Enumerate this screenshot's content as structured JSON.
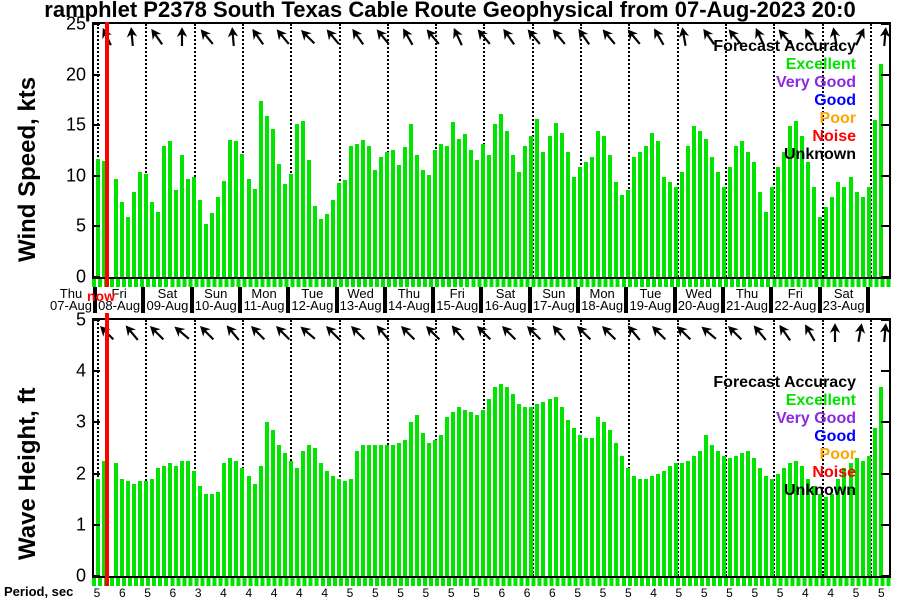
{
  "title": "ramphlet P2378 South Texas Cable Route Geophysical from 07-Aug-2023 20:0",
  "now_label": "now",
  "colors": {
    "bar": "#00e400",
    "now_line": "#ff0000",
    "axis": "#000000"
  },
  "legend": {
    "title": "Forecast Accuracy",
    "title_color": "#000000",
    "entries": [
      {
        "label": "Excellent",
        "color": "#00e400"
      },
      {
        "label": "Very Good",
        "color": "#8a2be2"
      },
      {
        "label": "Good",
        "color": "#0000ff"
      },
      {
        "label": "Poor",
        "color": "#ffa500"
      },
      {
        "label": "Noise",
        "color": "#ff0000"
      },
      {
        "label": "Unknown",
        "color": "#000000"
      }
    ]
  },
  "x_axis": {
    "days": [
      {
        "name": "Thu",
        "date": "07-Aug"
      },
      {
        "name": "Fri",
        "date": "08-Aug"
      },
      {
        "name": "Sat",
        "date": "09-Aug"
      },
      {
        "name": "Sun",
        "date": "10-Aug"
      },
      {
        "name": "Mon",
        "date": "11-Aug"
      },
      {
        "name": "Tue",
        "date": "12-Aug"
      },
      {
        "name": "Wed",
        "date": "13-Aug"
      },
      {
        "name": "Thu",
        "date": "14-Aug"
      },
      {
        "name": "Fri",
        "date": "15-Aug"
      },
      {
        "name": "Sat",
        "date": "16-Aug"
      },
      {
        "name": "Sun",
        "date": "17-Aug"
      },
      {
        "name": "Mon",
        "date": "18-Aug"
      },
      {
        "name": "Tue",
        "date": "19-Aug"
      },
      {
        "name": "Wed",
        "date": "20-Aug"
      },
      {
        "name": "Thu",
        "date": "21-Aug"
      },
      {
        "name": "Fri",
        "date": "22-Aug"
      },
      {
        "name": "Sat",
        "date": "23-Aug"
      }
    ]
  },
  "period_row": {
    "label": "Period, sec",
    "values": [
      5,
      6,
      5,
      6,
      3,
      4,
      4,
      4,
      4,
      4,
      5,
      5,
      5,
      5,
      5,
      5,
      6,
      6,
      6,
      5,
      5,
      5,
      4,
      5,
      5,
      5,
      5,
      5,
      4,
      4,
      5,
      5
    ]
  },
  "chart_data": [
    {
      "type": "bar",
      "title": "",
      "ylabel": "Wind Speed, kts",
      "ylim": [
        0,
        25
      ],
      "yticks": [
        0,
        5,
        10,
        15,
        20,
        25
      ],
      "grid": "vertical-dotted-daily",
      "legend_position": "upper right",
      "bar_color_meaning": "Forecast Accuracy: Excellent",
      "categories_days": [
        "Thu 07-Aug",
        "Fri 08-Aug",
        "Sat 09-Aug",
        "Sun 10-Aug",
        "Mon 11-Aug",
        "Tue 12-Aug",
        "Wed 13-Aug",
        "Thu 14-Aug",
        "Fri 15-Aug",
        "Sat 16-Aug",
        "Sun 17-Aug",
        "Mon 18-Aug",
        "Tue 19-Aug",
        "Wed 20-Aug",
        "Thu 21-Aug",
        "Fri 22-Aug",
        "Sat 23-Aug"
      ],
      "values": [
        11.7,
        11.5,
        9.7,
        7.4,
        5.9,
        8.4,
        10.4,
        10.2,
        7.4,
        6.4,
        12.9,
        13.4,
        8.6,
        12.1,
        9.7,
        9.9,
        7.6,
        5.2,
        6.3,
        7.9,
        9.5,
        13.5,
        13.4,
        12.2,
        9.7,
        8.7,
        17.4,
        15.9,
        14.6,
        11.2,
        9.2,
        10.2,
        15.1,
        15.4,
        11.6,
        7.0,
        5.7,
        6.2,
        7.6,
        9.3,
        9.6,
        12.9,
        13.1,
        13.5,
        12.9,
        10.6,
        11.9,
        12.4,
        12.6,
        11.1,
        12.8,
        15.1,
        12.1,
        10.6,
        10.1,
        12.6,
        13.1,
        12.9,
        15.3,
        13.6,
        14.1,
        12.6,
        11.6,
        13.1,
        12.1,
        15.1,
        16.1,
        14.4,
        12.1,
        10.4,
        12.9,
        13.9,
        15.6,
        12.4,
        13.9,
        15.2,
        14.2,
        12.4,
        9.9,
        10.9,
        11.4,
        11.9,
        14.4,
        13.9,
        12.1,
        9.4,
        8.1,
        8.6,
        11.9,
        12.4,
        12.9,
        14.2,
        13.4,
        9.9,
        9.4,
        8.9,
        10.4,
        12.9,
        14.9,
        14.4,
        13.6,
        11.9,
        10.4,
        8.9,
        10.9,
        12.9,
        13.4,
        12.4,
        11.4,
        8.4,
        6.4,
        8.9,
        10.9,
        12.4,
        14.9,
        15.4,
        13.9,
        11.4,
        8.9,
        5.9,
        6.9,
        7.9,
        9.4,
        8.9,
        9.9,
        8.4,
        7.9,
        8.9,
        15.5,
        21.0
      ],
      "arrow_angles_deg_from_north": [
        -25,
        -5,
        -35,
        0,
        -40,
        -5,
        -35,
        -40,
        -45,
        -40,
        -35,
        -40,
        -30,
        -40,
        -25,
        -40,
        -35,
        -40,
        -40,
        -35,
        -40,
        -40,
        -30,
        -10,
        -35,
        -40,
        -25,
        -40,
        -30,
        -10,
        25,
        5
      ]
    },
    {
      "type": "bar",
      "title": "",
      "ylabel": "Wave Height, ft",
      "ylim": [
        0,
        5
      ],
      "yticks": [
        0,
        1,
        2,
        3,
        4,
        5
      ],
      "grid": "vertical-dotted-daily",
      "legend_position": "upper right",
      "bar_color_meaning": "Forecast Accuracy: Excellent",
      "categories_days": [
        "Thu 07-Aug",
        "Fri 08-Aug",
        "Sat 09-Aug",
        "Sun 10-Aug",
        "Mon 11-Aug",
        "Tue 12-Aug",
        "Wed 13-Aug",
        "Thu 14-Aug",
        "Fri 15-Aug",
        "Sat 16-Aug",
        "Sun 17-Aug",
        "Mon 18-Aug",
        "Tue 19-Aug",
        "Wed 20-Aug",
        "Thu 21-Aug",
        "Fri 22-Aug",
        "Sat 23-Aug"
      ],
      "values": [
        1.9,
        2.25,
        2.2,
        1.9,
        1.85,
        1.8,
        1.85,
        1.85,
        1.9,
        2.1,
        2.15,
        2.2,
        2.15,
        2.25,
        2.25,
        2.05,
        1.75,
        1.6,
        1.6,
        1.65,
        2.2,
        2.3,
        2.25,
        2.1,
        1.95,
        1.8,
        2.15,
        3.0,
        2.85,
        2.55,
        2.4,
        2.25,
        2.1,
        2.45,
        2.55,
        2.5,
        2.2,
        2.05,
        1.95,
        1.9,
        1.85,
        1.9,
        2.45,
        2.55,
        2.55,
        2.55,
        2.55,
        2.55,
        2.55,
        2.6,
        2.65,
        3.0,
        3.15,
        2.8,
        2.6,
        2.65,
        2.75,
        3.1,
        3.2,
        3.3,
        3.25,
        3.2,
        3.15,
        3.25,
        3.45,
        3.7,
        3.75,
        3.7,
        3.55,
        3.35,
        3.3,
        3.3,
        3.35,
        3.4,
        3.45,
        3.5,
        3.3,
        3.05,
        2.9,
        2.75,
        2.7,
        2.7,
        3.1,
        3.0,
        2.85,
        2.6,
        2.35,
        2.1,
        1.95,
        1.9,
        1.9,
        1.95,
        2.0,
        2.05,
        2.15,
        2.2,
        2.2,
        2.25,
        2.35,
        2.45,
        2.75,
        2.55,
        2.45,
        2.35,
        2.3,
        2.35,
        2.4,
        2.45,
        2.3,
        2.1,
        1.95,
        1.9,
        2.0,
        2.1,
        2.2,
        2.25,
        2.15,
        1.9,
        1.75,
        1.6,
        1.55,
        1.6,
        1.9,
        2.1,
        2.2,
        2.3,
        2.25,
        2.35,
        2.9,
        3.7
      ],
      "arrow_angles_deg_from_north": [
        -45,
        -40,
        -45,
        -50,
        -45,
        -40,
        -45,
        -45,
        -50,
        -45,
        -45,
        -40,
        -45,
        -45,
        -40,
        -45,
        -45,
        -45,
        -40,
        -45,
        -45,
        -40,
        -45,
        -45,
        -50,
        -45,
        -40,
        -35,
        -30,
        0,
        10,
        5
      ]
    }
  ]
}
